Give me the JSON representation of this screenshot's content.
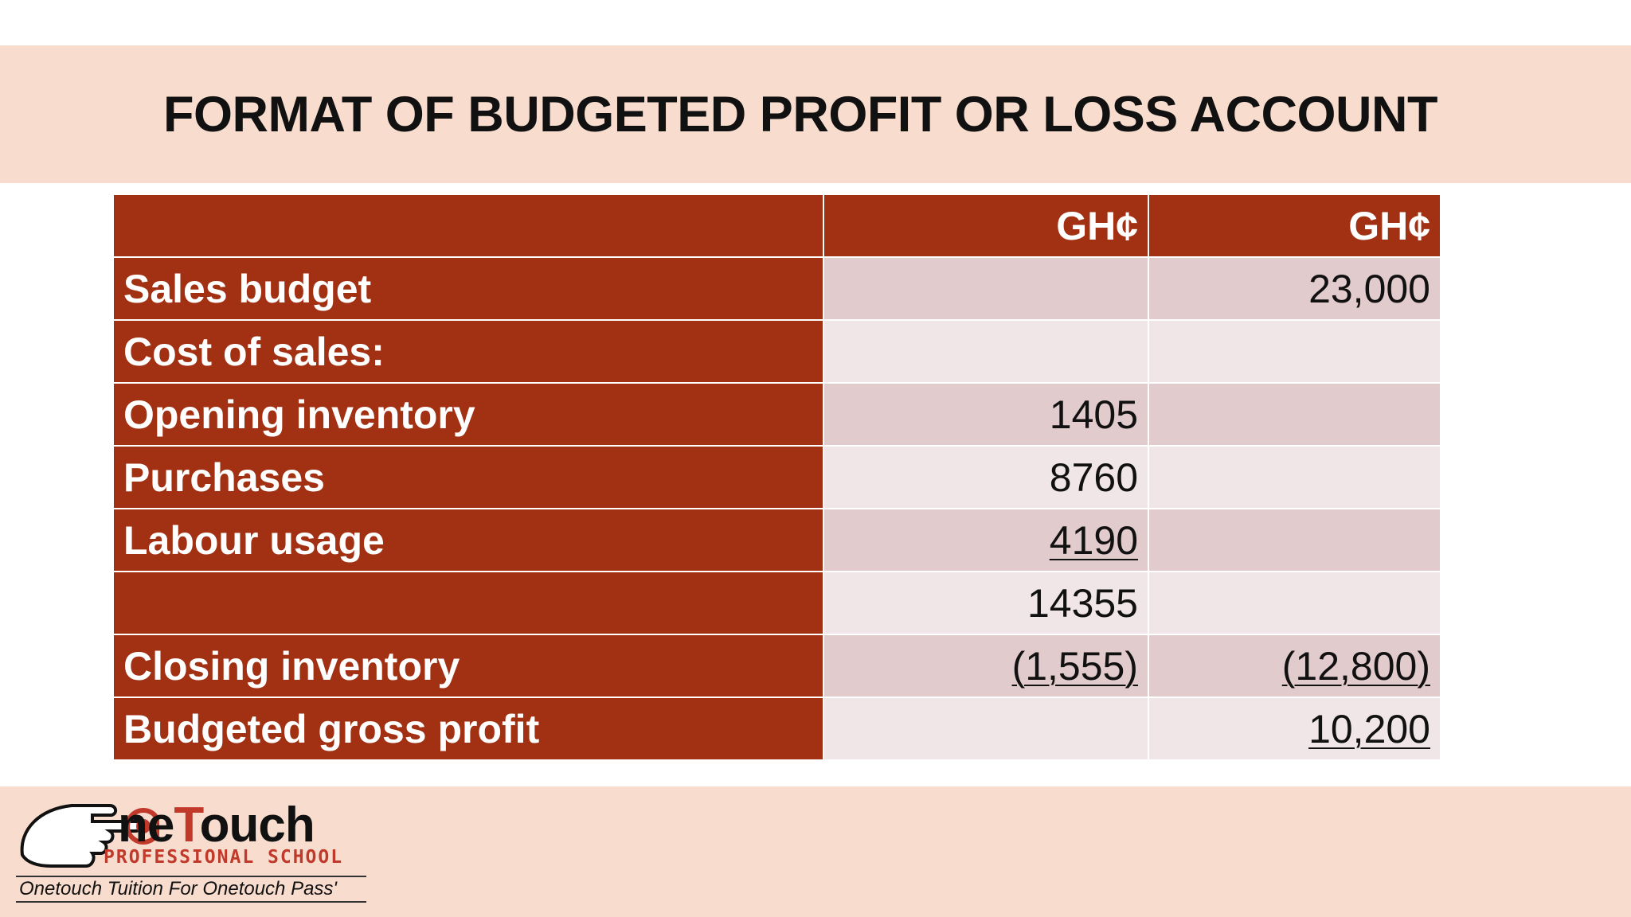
{
  "title": "FORMAT OF BUDGETED PROFIT OR LOSS ACCOUNT",
  "table": {
    "header": {
      "label": "",
      "col1": "GH¢",
      "col2": "GH¢"
    },
    "rows": [
      {
        "label": "Sales budget",
        "col1": "",
        "col2": "23,000",
        "col1_underline": false,
        "col2_underline": false
      },
      {
        "label": "Cost of sales:",
        "col1": "",
        "col2": "",
        "col1_underline": false,
        "col2_underline": false
      },
      {
        "label": "Opening inventory",
        "col1": "1405",
        "col2": "",
        "col1_underline": false,
        "col2_underline": false
      },
      {
        "label": "Purchases",
        "col1": "8760",
        "col2": "",
        "col1_underline": false,
        "col2_underline": false
      },
      {
        "label": "Labour usage",
        "col1": "4190",
        "col2": "",
        "col1_underline": true,
        "col2_underline": false
      },
      {
        "label": "",
        "col1": "14355",
        "col2": "",
        "col1_underline": false,
        "col2_underline": false
      },
      {
        "label": "Closing inventory",
        "col1": "(1,555)",
        "col2": "(12,800)",
        "col1_underline": true,
        "col2_underline": true
      },
      {
        "label": "Budgeted gross profit",
        "col1": "",
        "col2": "10,200",
        "col1_underline": false,
        "col2_underline": true
      }
    ]
  },
  "logo": {
    "brand_prefix": "ne",
    "brand_t": "T",
    "brand_suffix": "ouch",
    "school": "PROFESSIONAL SCHOOL",
    "tagline": "Onetouch Tuition For Onetouch Pass'"
  },
  "colors": {
    "band": "#f8dccd",
    "label_bg": "#a23012",
    "row_odd": "#e2cbcd",
    "row_even": "#f0e6e7",
    "logo_red": "#c0392b"
  }
}
